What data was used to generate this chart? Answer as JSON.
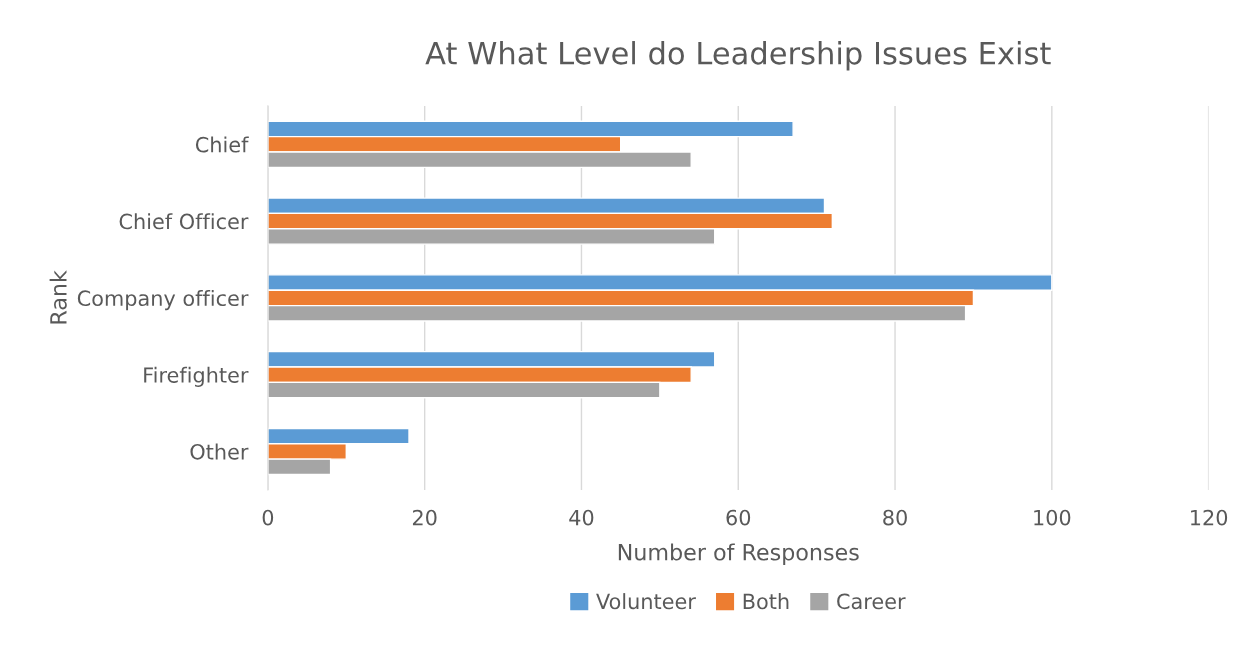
{
  "chart_data": {
    "type": "bar",
    "orientation": "horizontal",
    "title": "At What Level do Leadership Issues Exist",
    "xlabel": "Number of Responses",
    "ylabel": "Rank",
    "categories": [
      "Chief",
      "Chief Officer",
      "Company officer",
      "Firefighter",
      "Other"
    ],
    "series": [
      {
        "name": "Volunteer",
        "color": "#5b9bd5",
        "values": [
          67,
          71,
          100,
          57,
          18
        ]
      },
      {
        "name": "Both",
        "color": "#ed7d31",
        "values": [
          45,
          72,
          90,
          54,
          10
        ]
      },
      {
        "name": "Career",
        "color": "#a5a5a5",
        "values": [
          54,
          57,
          89,
          50,
          8
        ]
      }
    ],
    "xlim": [
      0,
      120
    ],
    "xticks": [
      0,
      20,
      40,
      60,
      80,
      100,
      120
    ],
    "grid": "x",
    "legend": "bottom"
  }
}
